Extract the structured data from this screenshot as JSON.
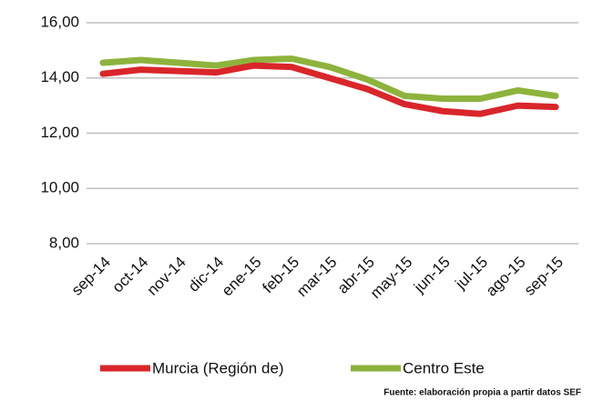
{
  "chart_data": {
    "type": "line",
    "categories": [
      "sep-14",
      "oct-14",
      "nov-14",
      "dic-14",
      "ene-15",
      "feb-15",
      "mar-15",
      "abr-15",
      "may-15",
      "jun-15",
      "jul-15",
      "ago-15",
      "sep-15"
    ],
    "series": [
      {
        "name": "Murcia (Región de)",
        "color": "#d9262a",
        "values": [
          14.15,
          14.3,
          14.25,
          14.2,
          14.45,
          14.4,
          14.0,
          13.6,
          13.05,
          12.8,
          12.7,
          13.0,
          12.95
        ]
      },
      {
        "name": "Centro Este",
        "color": "#8db33c",
        "values": [
          14.55,
          14.65,
          14.55,
          14.45,
          14.65,
          14.7,
          14.4,
          13.95,
          13.35,
          13.25,
          13.25,
          13.55,
          13.35
        ]
      }
    ],
    "ylim": [
      8,
      16
    ],
    "yticks": [
      {
        "value": 8,
        "label": "8,00"
      },
      {
        "value": 10,
        "label": "10,00"
      },
      {
        "value": 12,
        "label": "12,00"
      },
      {
        "value": 14,
        "label": "14,00"
      },
      {
        "value": 16,
        "label": "16,00"
      }
    ],
    "grid": true,
    "source": "Fuente: elaboración propia a partir datos SEF"
  }
}
